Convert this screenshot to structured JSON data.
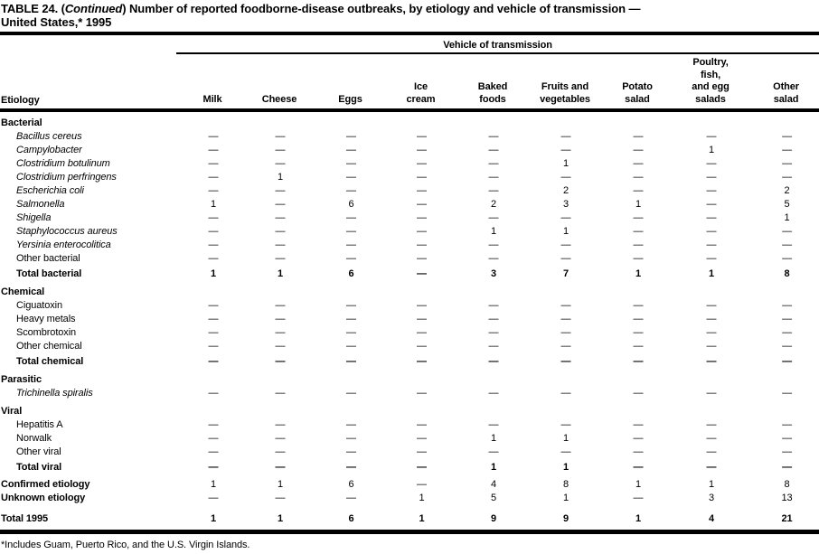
{
  "title": {
    "prefix": "TABLE 24. (",
    "continued": "Continued",
    "suffix": ") Number of reported foodborne-disease outbreaks, by etiology and vehicle of transmission —",
    "line2": "United States,* 1995"
  },
  "table": {
    "spanner": "Vehicle of transmission",
    "etiology_header": "Etiology",
    "columns": [
      [
        "Milk"
      ],
      [
        "Cheese"
      ],
      [
        "Eggs"
      ],
      [
        "Ice",
        "cream"
      ],
      [
        "Baked",
        "foods"
      ],
      [
        "Fruits and",
        "vegetables"
      ],
      [
        "Potato",
        "salad"
      ],
      [
        "Poultry,",
        "fish,",
        "and egg",
        "salads"
      ],
      [
        "Other",
        "salad"
      ]
    ],
    "rows": [
      {
        "label": "Bacterial",
        "type": "section",
        "values": null
      },
      {
        "label": "Bacillus cereus",
        "type": "species",
        "values": [
          "—",
          "—",
          "—",
          "—",
          "—",
          "—",
          "—",
          "—",
          "—"
        ]
      },
      {
        "label": "Campylobacter",
        "type": "species",
        "values": [
          "—",
          "—",
          "—",
          "—",
          "—",
          "—",
          "—",
          "1",
          "—"
        ]
      },
      {
        "label": "Clostridium botulinum",
        "type": "species",
        "values": [
          "—",
          "—",
          "—",
          "—",
          "—",
          "1",
          "—",
          "—",
          "—"
        ]
      },
      {
        "label": "Clostridium perfringens",
        "type": "species",
        "values": [
          "—",
          "1",
          "—",
          "—",
          "—",
          "—",
          "—",
          "—",
          "—"
        ]
      },
      {
        "label": "Escherichia coli",
        "type": "species",
        "values": [
          "—",
          "—",
          "—",
          "—",
          "—",
          "2",
          "—",
          "—",
          "2"
        ]
      },
      {
        "label": "Salmonella",
        "type": "species",
        "values": [
          "1",
          "—",
          "6",
          "—",
          "2",
          "3",
          "1",
          "—",
          "5"
        ]
      },
      {
        "label": "Shigella",
        "type": "species",
        "values": [
          "—",
          "—",
          "—",
          "—",
          "—",
          "—",
          "—",
          "—",
          "1"
        ]
      },
      {
        "label": "Staphylococcus aureus",
        "type": "species",
        "values": [
          "—",
          "—",
          "—",
          "—",
          "1",
          "1",
          "—",
          "—",
          "—"
        ]
      },
      {
        "label": "Yersinia enterocolitica",
        "type": "species",
        "values": [
          "—",
          "—",
          "—",
          "—",
          "—",
          "—",
          "—",
          "—",
          "—"
        ]
      },
      {
        "label": "Other bacterial",
        "type": "plain",
        "values": [
          "—",
          "—",
          "—",
          "—",
          "—",
          "—",
          "—",
          "—",
          "—"
        ]
      },
      {
        "label": "Total bacterial",
        "type": "total",
        "values": [
          "1",
          "1",
          "6",
          "—",
          "3",
          "7",
          "1",
          "1",
          "8"
        ]
      },
      {
        "label": "Chemical",
        "type": "section",
        "values": null
      },
      {
        "label": "Ciguatoxin",
        "type": "plain",
        "values": [
          "—",
          "—",
          "—",
          "—",
          "—",
          "—",
          "—",
          "—",
          "—"
        ]
      },
      {
        "label": "Heavy metals",
        "type": "plain",
        "values": [
          "—",
          "—",
          "—",
          "—",
          "—",
          "—",
          "—",
          "—",
          "—"
        ]
      },
      {
        "label": "Scombrotoxin",
        "type": "plain",
        "values": [
          "—",
          "—",
          "—",
          "—",
          "—",
          "—",
          "—",
          "—",
          "—"
        ]
      },
      {
        "label": "Other chemical",
        "type": "plain",
        "values": [
          "—",
          "—",
          "—",
          "—",
          "—",
          "—",
          "—",
          "—",
          "—"
        ]
      },
      {
        "label": "Total chemical",
        "type": "total",
        "values": [
          "—",
          "—",
          "—",
          "—",
          "—",
          "—",
          "—",
          "—",
          "—"
        ]
      },
      {
        "label": "Parasitic",
        "type": "section",
        "values": null
      },
      {
        "label": "Trichinella spiralis",
        "type": "species",
        "values": [
          "—",
          "—",
          "—",
          "—",
          "—",
          "—",
          "—",
          "—",
          "—"
        ]
      },
      {
        "label": "Viral",
        "type": "section",
        "values": null
      },
      {
        "label": "Hepatitis A",
        "type": "plain",
        "values": [
          "—",
          "—",
          "—",
          "—",
          "—",
          "—",
          "—",
          "—",
          "—"
        ]
      },
      {
        "label": "Norwalk",
        "type": "plain",
        "values": [
          "—",
          "—",
          "—",
          "—",
          "1",
          "1",
          "—",
          "—",
          "—"
        ]
      },
      {
        "label": "Other viral",
        "type": "plain",
        "values": [
          "—",
          "—",
          "—",
          "—",
          "—",
          "—",
          "—",
          "—",
          "—"
        ]
      },
      {
        "label": "Total viral",
        "type": "total",
        "values": [
          "—",
          "—",
          "—",
          "—",
          "1",
          "1",
          "—",
          "—",
          "—"
        ]
      },
      {
        "label": "Confirmed etiology",
        "type": "summary",
        "values": [
          "1",
          "1",
          "6",
          "—",
          "4",
          "8",
          "1",
          "1",
          "8"
        ]
      },
      {
        "label": "Unknown etiology",
        "type": "summary",
        "values": [
          "—",
          "—",
          "—",
          "1",
          "5",
          "1",
          "—",
          "3",
          "13"
        ]
      },
      {
        "label": "Total 1995",
        "type": "grand",
        "values": [
          "1",
          "1",
          "6",
          "1",
          "9",
          "9",
          "1",
          "4",
          "21"
        ]
      }
    ]
  },
  "footnote": "*Includes Guam, Puerto Rico, and the U.S. Virgin Islands."
}
